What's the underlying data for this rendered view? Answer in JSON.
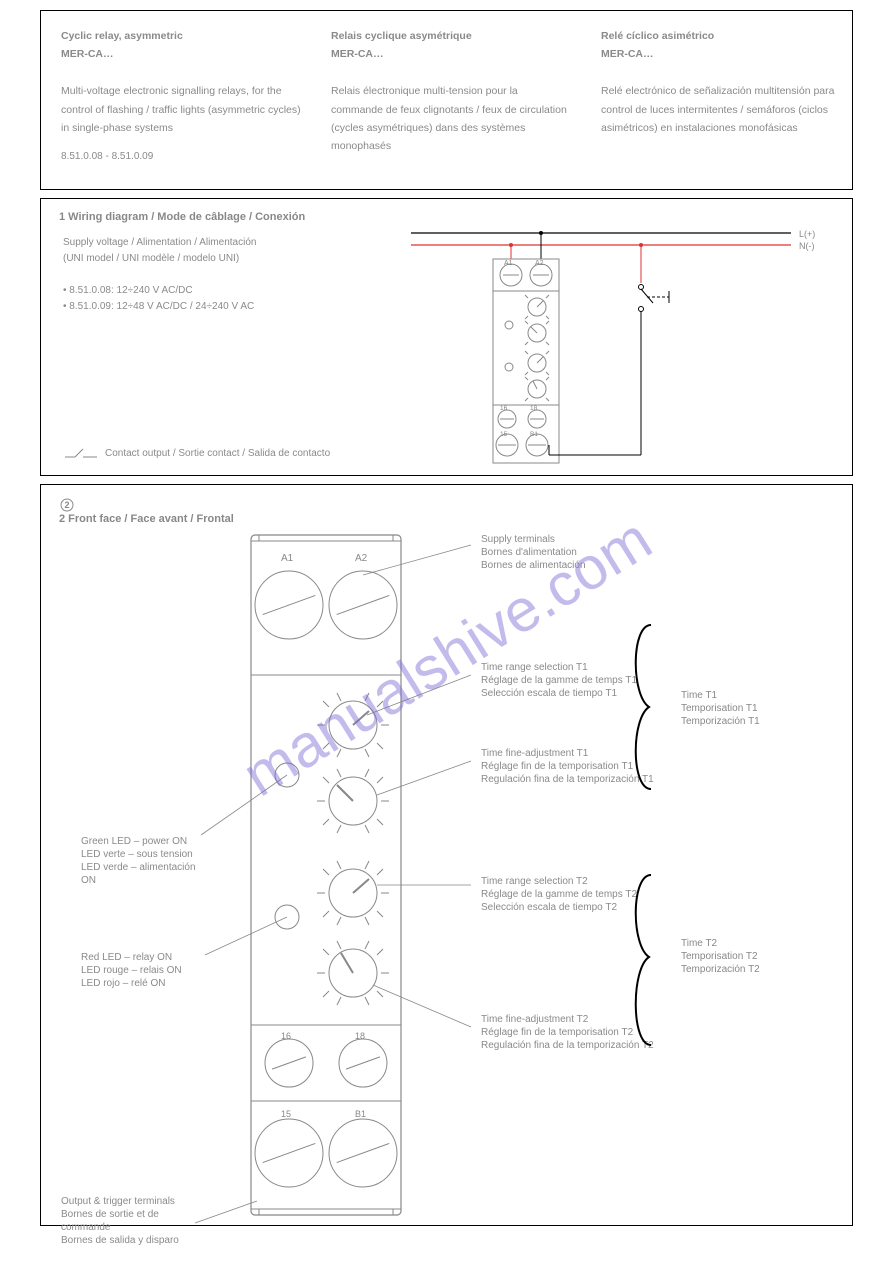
{
  "header": {
    "title_en": "Cyclic relay, asymmetric",
    "title_fr": "Relais cyclique asymétrique",
    "title_es": "Relé cíclico asimétrico",
    "series": "MER-CA…",
    "desc_en": "Multi-voltage electronic signalling relays, for the control of flashing / traffic lights (asymmetric cycles) in single-phase systems",
    "desc_fr": "Relais électronique multi-tension pour la commande de feux clignotants / feux de circulation (cycles asymétriques) dans des systèmes monophasés",
    "desc_es": "Relé electrónico de señalización multitensión para control de luces intermitentes / semáforos (ciclos asimétricos) en instalaciones monofásicas",
    "part_line": "8.51.0.08 - 8.51.0.09"
  },
  "wiring": {
    "title": "1  Wiring diagram / Mode de câblage / Conexión",
    "lbl_volt_a": "Supply voltage / Alimentation / Alimentación",
    "lbl_volt_b": "(UNI model / UNI modèle / modelo UNI)",
    "lbl_080_a": "• 8.51.0.08: 12÷240 V AC/DC",
    "lbl_080_b": "• 8.51.0.09: 12÷48 V AC/DC  /  24÷240 V AC",
    "footnote": "Contact output / Sortie contact / Salida de contacto",
    "line_L": "L(+)",
    "line_N": "N(-)",
    "t_A1": "A1",
    "t_A2": "A2",
    "t_15": "15",
    "t_16": "16",
    "t_18": "18"
  },
  "front": {
    "title": "2   Front face / Face avant / Frontal",
    "c1": "Supply terminals\nBornes d'alimentation\nBornes de alimentación",
    "c2": "Time range selection T1\nRéglage de la gamme de temps T1\nSelección escala de tiempo T1",
    "c3": "Time fine-adjustment T1\nRéglage fin de la temporisation T1\nRegulación fina de la temporización T1",
    "c4": "Green LED – power ON\nLED verte – sous tension\nLED verde – alimentación ON",
    "c5": "Red LED – relay ON\nLED rouge – relais ON\nLED rojo – relé ON",
    "c6": "Time range selection T2\nRéglage de la gamme de temps T2\nSelección escala de tiempo T2",
    "c7": "Time fine-adjustment T2\nRéglage fin de la temporisation T2\nRegulación fina de la temporización T2",
    "c8": "Output & trigger terminals\nBornes de sortie et de commande\nBornes de salida y disparo",
    "brace1": "Time T1\nTemporisation T1\nTemporización T1",
    "brace2": "Time T2\nTemporisation T2\nTemporización T2",
    "t_A1": "A1",
    "t_A2": "A2",
    "t_16": "16",
    "t_18": "18",
    "t_15": "15",
    "t_B1": "B1"
  },
  "style": {
    "grey": "#8a8a8a",
    "red": "#d33",
    "black": "#000"
  }
}
